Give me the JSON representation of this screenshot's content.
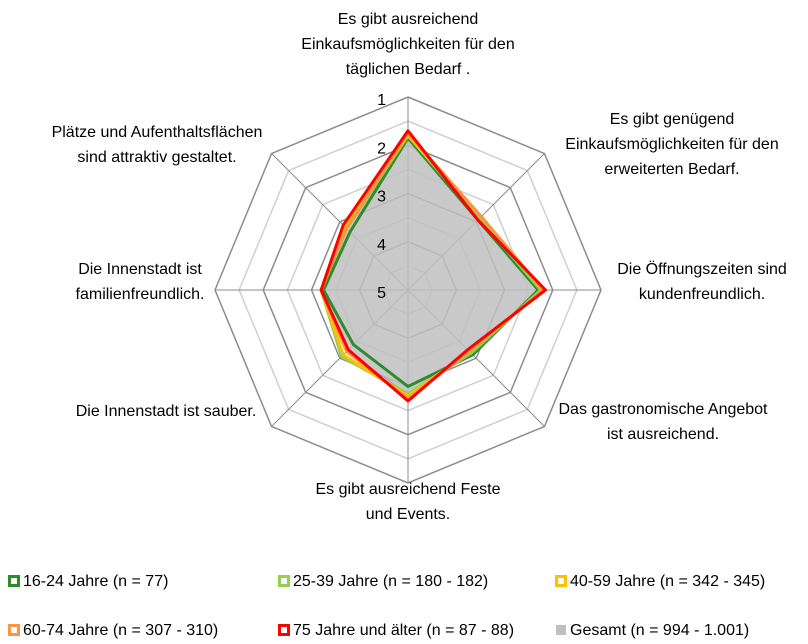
{
  "chart_data": {
    "type": "radar",
    "categories": [
      "Es gibt ausreichend\nEinkaufsmöglichkeiten für den\ntäglichen Bedarf .",
      "Es gibt genügend\nEinkaufsmöglichkeiten für den\nerweiterten Bedarf.",
      "Die Öffnungszeiten sind\nkundenfreundlich.",
      "Das gastronomische Angebot\nist ausreichend.",
      "Es gibt ausreichend Feste\nund Events.",
      "Die Innenstadt ist sauber.",
      "Die Innenstadt ist\nfamilienfreundlich.",
      "Plätze und Aufenthaltsflächen\nsind attraktiv gestaltet."
    ],
    "ylim": [
      1,
      5
    ],
    "yticks": [
      1,
      2,
      3,
      4,
      5
    ],
    "reversed": true,
    "series": [
      {
        "name": "Gesamt (n = 994 - 1.001)",
        "color": "#bfbfbf",
        "fill": true,
        "values": [
          1.8,
          2.9,
          2.25,
          3.2,
          2.85,
          3.2,
          3.25,
          3.2
        ]
      },
      {
        "name": "16-24 Jahre (n = 77)",
        "color": "#2e8b2e",
        "values": [
          1.85,
          2.95,
          2.3,
          3.1,
          3.0,
          3.4,
          3.25,
          3.3
        ]
      },
      {
        "name": "25-39 Jahre (n = 180 - 182)",
        "color": "#92d050",
        "values": [
          1.8,
          2.9,
          2.25,
          3.15,
          2.85,
          3.05,
          3.2,
          3.2
        ]
      },
      {
        "name": "40-59 Jahre (n = 342 - 345)",
        "color": "#ffc000",
        "values": [
          1.8,
          2.85,
          2.2,
          3.2,
          2.8,
          3.1,
          3.2,
          3.15
        ]
      },
      {
        "name": "60-74 Jahre (n = 307 - 310)",
        "color": "#f79646",
        "values": [
          1.75,
          2.85,
          2.2,
          3.2,
          2.75,
          3.2,
          3.2,
          3.2
        ]
      },
      {
        "name": "75 Jahre und älter (n = 87 - 88)",
        "color": "#ff0000",
        "values": [
          1.7,
          2.95,
          2.15,
          3.25,
          2.7,
          3.25,
          3.2,
          3.1
        ]
      }
    ],
    "legend_order": [
      1,
      2,
      3,
      4,
      5,
      0
    ]
  }
}
